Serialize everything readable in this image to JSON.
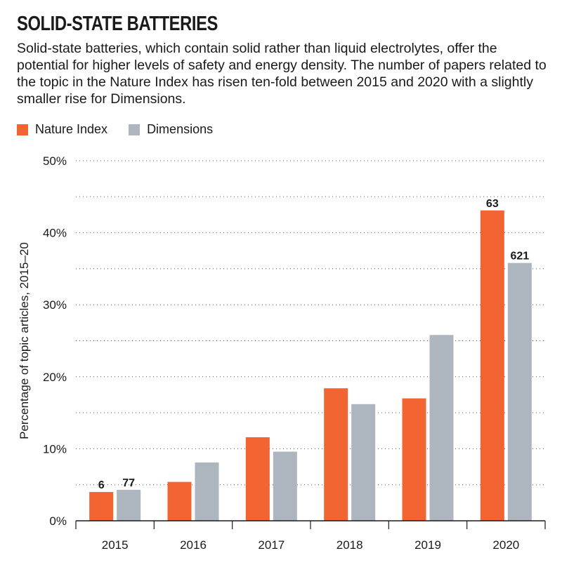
{
  "header": {
    "title": "SOLID-STATE BATTERIES",
    "subtitle": "Solid-state batteries, which contain solid rather than liquid electrolytes, offer the potential for higher levels of safety and energy density. The number of papers related to the topic in the Nature Index has risen ten-fold between 2015 and 2020 with a slightly smaller rise for Dimensions."
  },
  "colors": {
    "nature_index": "#f26532",
    "dimensions": "#adb5bf",
    "grid": "#555555",
    "axis": "#1a1a1a"
  },
  "chart_data": {
    "type": "bar",
    "title": "SOLID-STATE BATTERIES",
    "xlabel": "",
    "ylabel": "Percentage of topic articles, 2015–20",
    "categories": [
      "2015",
      "2016",
      "2017",
      "2018",
      "2019",
      "2020"
    ],
    "ylim": [
      0,
      50
    ],
    "yticks": [
      0,
      10,
      20,
      30,
      40,
      50
    ],
    "ytick_labels": [
      "0%",
      "10%",
      "20%",
      "30%",
      "40%",
      "50%"
    ],
    "grid": "dotted horizontal",
    "legend_position": "top-left",
    "series": [
      {
        "name": "Nature Index",
        "values": [
          4.0,
          5.4,
          11.6,
          18.4,
          17.0,
          43.1
        ],
        "labels": [
          "6",
          "",
          "",
          "",
          "",
          "63"
        ]
      },
      {
        "name": "Dimensions",
        "values": [
          4.3,
          8.1,
          9.6,
          16.2,
          25.8,
          35.8
        ],
        "labels": [
          "77",
          "",
          "",
          "",
          "",
          "621"
        ]
      }
    ]
  }
}
